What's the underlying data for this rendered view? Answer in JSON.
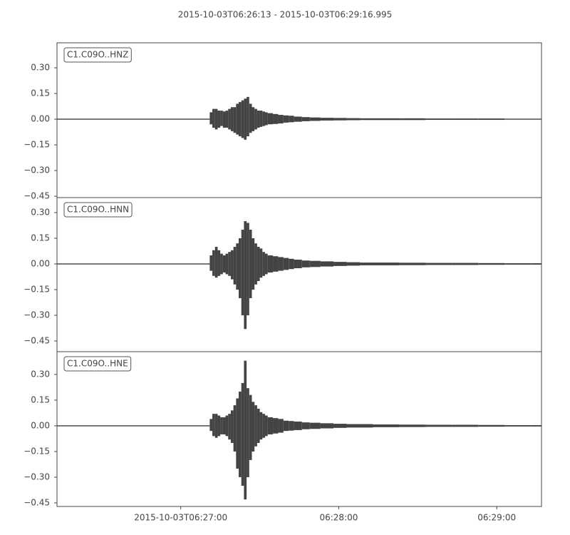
{
  "chart_data": {
    "type": "waveform",
    "title": "2015-10-03T06:26:13  -  2015-10-03T06:29:16.995",
    "color": "#444444",
    "xlim": [
      0,
      183.995
    ],
    "xticks": [
      {
        "value": 47,
        "label": "2015-10-03T06:27:00"
      },
      {
        "value": 107,
        "label": "06:28:00"
      },
      {
        "value": 167,
        "label": "06:29:00"
      }
    ],
    "x": [
      0,
      58,
      59,
      60,
      61,
      62,
      63,
      64,
      65,
      66,
      67,
      68,
      69,
      70,
      71,
      72,
      73,
      74,
      75,
      76,
      77,
      78,
      79,
      80,
      82,
      84,
      86,
      88,
      90,
      93,
      96,
      100,
      105,
      110,
      115,
      120,
      130,
      140,
      150,
      160,
      170,
      180
    ],
    "panels": [
      {
        "label": "C1.C09O..HNZ",
        "ylim": [
          -0.458,
          0.446
        ],
        "yticks": [
          {
            "value": 0.3,
            "label": "0.30"
          },
          {
            "value": 0.15,
            "label": "0.15"
          },
          {
            "value": 0,
            "label": "0.00"
          },
          {
            "value": -0.15,
            "label": "−0.15"
          },
          {
            "value": -0.3,
            "label": "−0.30"
          },
          {
            "value": -0.45,
            "label": "−0.45"
          }
        ],
        "upper": [
          0.003,
          0.04,
          0.06,
          0.06,
          0.05,
          0.05,
          0.045,
          0.05,
          0.06,
          0.07,
          0.07,
          0.09,
          0.1,
          0.11,
          0.12,
          0.13,
          0.09,
          0.07,
          0.06,
          0.05,
          0.05,
          0.045,
          0.04,
          0.035,
          0.03,
          0.025,
          0.022,
          0.02,
          0.015,
          0.012,
          0.01,
          0.008,
          0.007,
          0.006,
          0.005,
          0.005,
          0.005,
          0.004,
          0.004,
          0.004,
          0.003,
          0.003
        ],
        "lower": [
          -0.003,
          -0.03,
          -0.05,
          -0.06,
          -0.05,
          -0.04,
          -0.05,
          -0.05,
          -0.06,
          -0.07,
          -0.08,
          -0.09,
          -0.1,
          -0.11,
          -0.12,
          -0.1,
          -0.08,
          -0.07,
          -0.06,
          -0.05,
          -0.045,
          -0.04,
          -0.035,
          -0.03,
          -0.028,
          -0.025,
          -0.02,
          -0.018,
          -0.015,
          -0.012,
          -0.01,
          -0.008,
          -0.007,
          -0.006,
          -0.005,
          -0.005,
          -0.005,
          -0.004,
          -0.004,
          -0.004,
          -0.003,
          -0.003
        ]
      },
      {
        "label": "C1.C09O..HNN",
        "ylim": [
          -0.5125,
          0.3875
        ],
        "yticks": [
          {
            "value": 0.3,
            "label": "0.30"
          },
          {
            "value": 0.15,
            "label": "0.15"
          },
          {
            "value": 0,
            "label": "0.00"
          },
          {
            "value": -0.15,
            "label": "−0.15"
          },
          {
            "value": -0.3,
            "label": "−0.30"
          },
          {
            "value": -0.45,
            "label": "−0.45"
          }
        ],
        "upper": [
          0.003,
          0.05,
          0.08,
          0.1,
          0.08,
          0.06,
          0.05,
          0.06,
          0.07,
          0.08,
          0.1,
          0.12,
          0.15,
          0.2,
          0.25,
          0.24,
          0.2,
          0.15,
          0.12,
          0.1,
          0.09,
          0.07,
          0.06,
          0.05,
          0.045,
          0.04,
          0.035,
          0.03,
          0.025,
          0.02,
          0.018,
          0.015,
          0.012,
          0.01,
          0.008,
          0.008,
          0.007,
          0.006,
          0.006,
          0.005,
          0.004,
          0.004
        ],
        "lower": [
          -0.003,
          -0.04,
          -0.07,
          -0.08,
          -0.07,
          -0.06,
          -0.05,
          -0.06,
          -0.07,
          -0.09,
          -0.12,
          -0.15,
          -0.2,
          -0.3,
          -0.38,
          -0.3,
          -0.2,
          -0.15,
          -0.12,
          -0.1,
          -0.08,
          -0.07,
          -0.06,
          -0.05,
          -0.045,
          -0.04,
          -0.035,
          -0.03,
          -0.025,
          -0.02,
          -0.018,
          -0.015,
          -0.012,
          -0.01,
          -0.008,
          -0.008,
          -0.007,
          -0.006,
          -0.006,
          -0.005,
          -0.004,
          -0.004
        ]
      },
      {
        "label": "C1.C09O..HNE",
        "ylim": [
          -0.471,
          0.433
        ],
        "yticks": [
          {
            "value": 0.3,
            "label": "0.30"
          },
          {
            "value": 0.15,
            "label": "0.15"
          },
          {
            "value": 0,
            "label": "0.00"
          },
          {
            "value": -0.15,
            "label": "−0.15"
          },
          {
            "value": -0.3,
            "label": "−0.30"
          },
          {
            "value": -0.45,
            "label": "−0.45"
          }
        ],
        "upper": [
          0.003,
          0.04,
          0.07,
          0.07,
          0.06,
          0.05,
          0.05,
          0.06,
          0.07,
          0.09,
          0.12,
          0.16,
          0.2,
          0.25,
          0.38,
          0.22,
          0.18,
          0.14,
          0.12,
          0.1,
          0.08,
          0.07,
          0.06,
          0.05,
          0.045,
          0.04,
          0.03,
          0.028,
          0.025,
          0.02,
          0.018,
          0.015,
          0.012,
          0.01,
          0.01,
          0.008,
          0.007,
          0.006,
          0.006,
          0.005,
          0.004,
          0.004
        ],
        "lower": [
          -0.003,
          -0.03,
          -0.06,
          -0.07,
          -0.06,
          -0.05,
          -0.05,
          -0.06,
          -0.08,
          -0.1,
          -0.15,
          -0.25,
          -0.3,
          -0.35,
          -0.43,
          -0.3,
          -0.2,
          -0.15,
          -0.12,
          -0.1,
          -0.08,
          -0.07,
          -0.06,
          -0.05,
          -0.045,
          -0.04,
          -0.03,
          -0.028,
          -0.025,
          -0.02,
          -0.018,
          -0.015,
          -0.012,
          -0.01,
          -0.01,
          -0.008,
          -0.007,
          -0.006,
          -0.006,
          -0.005,
          -0.004,
          -0.004
        ]
      }
    ]
  }
}
